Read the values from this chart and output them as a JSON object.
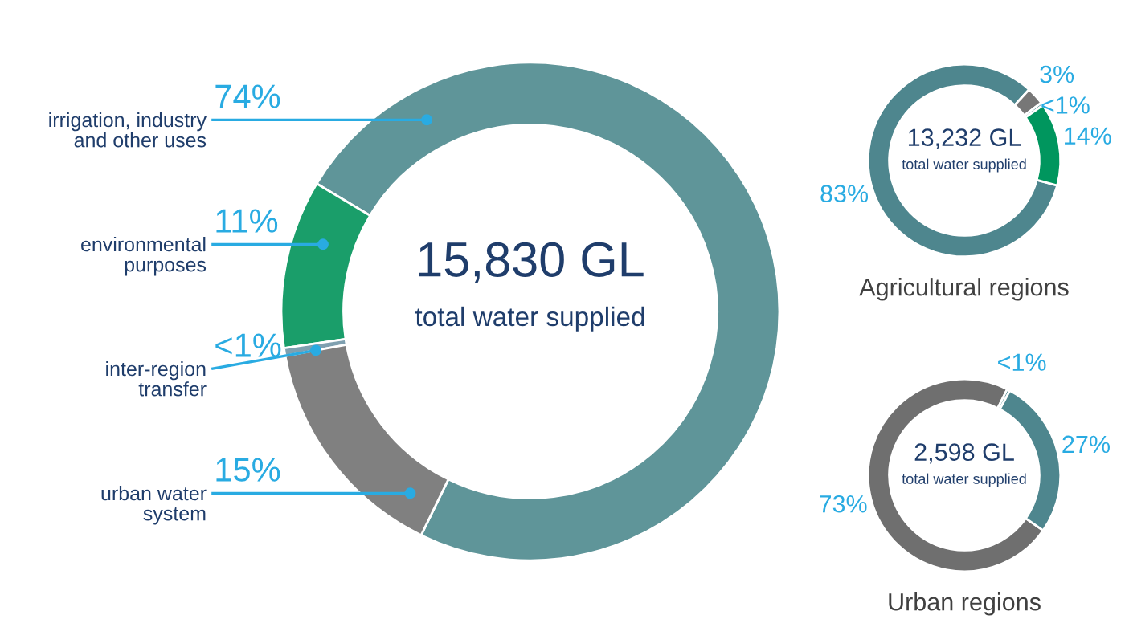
{
  "chart_data": [
    {
      "type": "donut",
      "categories": [
        "irrigation, industry\nand other uses",
        "environmental\npurposes",
        "inter-region\ntransfer",
        "urban water\nsystem"
      ],
      "values": [
        74,
        11,
        0.5,
        15
      ],
      "colors": [
        "#5f9599",
        "#1a9e6a",
        "#7fa0b0",
        "#808080"
      ],
      "value_labels": [
        "74%",
        "11%",
        "<1%",
        "15%"
      ],
      "annotations": [
        "15,830 GL",
        "total water supplied"
      ]
    },
    {
      "type": "donut",
      "title": "Agricultural regions",
      "categories": [
        null,
        null,
        null,
        null
      ],
      "values": [
        83,
        3,
        0.5,
        14
      ],
      "colors": [
        "#4e868e",
        "#777777",
        "#4e868e",
        "#00965e"
      ],
      "value_labels": [
        "83%",
        "3%",
        "<1%",
        "14%"
      ],
      "annotations": [
        "13,232 GL",
        "total water supplied"
      ]
    },
    {
      "type": "donut",
      "title": "Urban regions",
      "categories": [
        null,
        null,
        null
      ],
      "values": [
        73,
        0.5,
        27
      ],
      "colors": [
        "#6f6f6f",
        "#4e868e",
        "#4e868e"
      ],
      "value_labels": [
        "73%",
        "<1%",
        "27%"
      ],
      "annotations": [
        "2,598 GL",
        "total water supplied"
      ]
    }
  ]
}
